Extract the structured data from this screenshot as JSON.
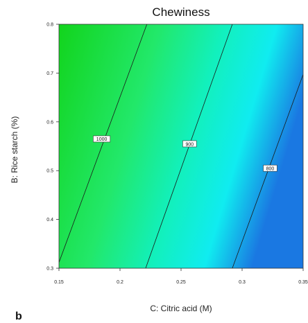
{
  "panel_label": "b",
  "chart_data": {
    "type": "contour",
    "title": "Chewiness",
    "xlabel": "C: Citric acid (M)",
    "ylabel": "B: Rice starch (%)",
    "xlim": [
      0.15,
      0.35
    ],
    "ylim": [
      0.3,
      0.8
    ],
    "x_ticks": [
      "0.15",
      "0.2",
      "0.25",
      "0.3",
      "0.35"
    ],
    "y_ticks": [
      "0.3",
      "0.4",
      "0.5",
      "0.6",
      "0.7",
      "0.8"
    ],
    "contours": [
      {
        "label": "1000",
        "points": [
          [
            0.15,
            0.312
          ],
          [
            0.222,
            0.8
          ]
        ],
        "label_at": [
          0.185,
          0.565
        ]
      },
      {
        "label": "900",
        "points": [
          [
            0.221,
            0.3
          ],
          [
            0.292,
            0.8
          ]
        ],
        "label_at": [
          0.257,
          0.555
        ]
      },
      {
        "label": "800",
        "points": [
          [
            0.292,
            0.3
          ],
          [
            0.35,
            0.697
          ]
        ],
        "label_at": [
          0.323,
          0.505
        ]
      }
    ],
    "fill_gradient": {
      "high": "#12d41c",
      "mid_high": "#22e86a",
      "mid": "#12f0bc",
      "low": "#10ecf0",
      "lowest": "#1a78e2"
    },
    "grid": false
  }
}
